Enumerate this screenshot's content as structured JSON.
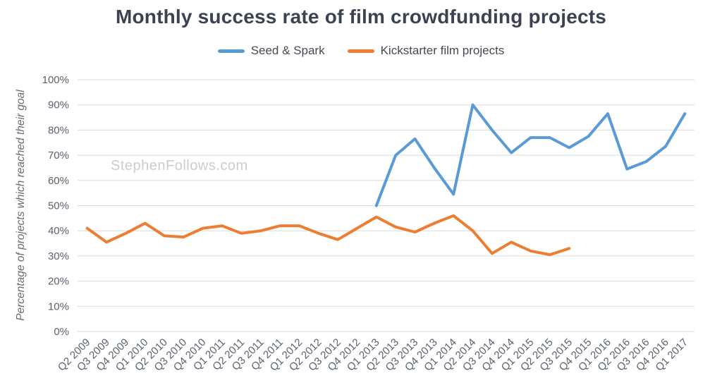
{
  "chart_data": {
    "type": "line",
    "title": "Monthly success rate of film crowdfunding projects",
    "watermark": "StephenFollows.com",
    "xlabel": "",
    "ylabel": "Percentage of projects which reached their goal",
    "ylim": [
      0,
      100
    ],
    "ytick_step": 10,
    "ytick_suffix": "%",
    "grid": true,
    "legend_position": "top",
    "grid_color": "#dcdcdc",
    "axis_text_color": "#5a626e",
    "categories": [
      "Q2 2009",
      "Q3 2009",
      "Q4 2009",
      "Q1 2010",
      "Q2 2010",
      "Q3 2010",
      "Q4 2010",
      "Q1 2011",
      "Q2 2011",
      "Q3 2011",
      "Q4 2011",
      "Q1 2012",
      "Q2 2012",
      "Q3 2012",
      "Q4 2012",
      "Q1 2013",
      "Q2 2013",
      "Q3 2013",
      "Q4 2013",
      "Q1 2014",
      "Q2 2014",
      "Q3 2014",
      "Q4 2014",
      "Q1 2015",
      "Q2 2015",
      "Q3 2015",
      "Q4 2015",
      "Q1 2016",
      "Q2 2016",
      "Q3 2016",
      "Q4 2016",
      "Q1 2017"
    ],
    "series": [
      {
        "name": "Seed & Spark",
        "color": "#5b9bd5",
        "values": [
          null,
          null,
          null,
          null,
          null,
          null,
          null,
          null,
          null,
          null,
          null,
          null,
          null,
          null,
          null,
          50,
          70,
          76.5,
          65,
          54.5,
          90,
          80,
          71,
          77,
          77,
          73,
          77.5,
          86.5,
          64.5,
          67.5,
          73.5,
          86.5
        ]
      },
      {
        "name": "Kickstarter film projects",
        "color": "#ed7d31",
        "values": [
          41,
          35.5,
          39,
          43,
          38,
          37.5,
          41,
          42,
          39,
          40,
          42,
          42,
          39,
          36.5,
          41,
          45.5,
          41.5,
          39.5,
          43,
          46,
          40,
          31,
          35.5,
          32,
          30.5,
          33,
          null,
          null,
          null,
          null,
          null,
          null
        ]
      }
    ]
  }
}
